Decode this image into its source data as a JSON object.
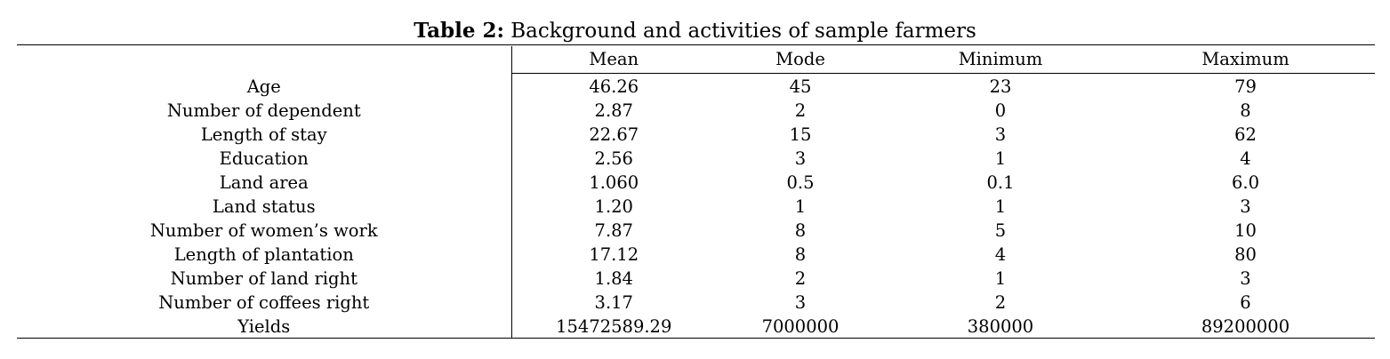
{
  "caption": {
    "label": "Table 2:",
    "text": "Background and activities of sample farmers"
  },
  "table": {
    "columns": [
      "",
      "Mean",
      "Mode",
      "Minimum",
      "Maximum"
    ],
    "rows": [
      {
        "label": "Age",
        "mean": "46.26",
        "mode": "45",
        "minimum": "23",
        "maximum": "79"
      },
      {
        "label": "Number of dependent",
        "mean": "2.87",
        "mode": "2",
        "minimum": "0",
        "maximum": "8"
      },
      {
        "label": "Length of stay",
        "mean": "22.67",
        "mode": "15",
        "minimum": "3",
        "maximum": "62"
      },
      {
        "label": "Education",
        "mean": "2.56",
        "mode": "3",
        "minimum": "1",
        "maximum": "4"
      },
      {
        "label": "Land area",
        "mean": "1.060",
        "mode": "0.5",
        "minimum": "0.1",
        "maximum": "6.0"
      },
      {
        "label": "Land status",
        "mean": "1.20",
        "mode": "1",
        "minimum": "1",
        "maximum": "3"
      },
      {
        "label": "Number of women’s work",
        "mean": "7.87",
        "mode": "8",
        "minimum": "5",
        "maximum": "10"
      },
      {
        "label": "Length of plantation",
        "mean": "17.12",
        "mode": "8",
        "minimum": "4",
        "maximum": "80"
      },
      {
        "label": "Number of land right",
        "mean": "1.84",
        "mode": "2",
        "minimum": "1",
        "maximum": "3"
      },
      {
        "label": "Number of coffees right",
        "mean": "3.17",
        "mode": "3",
        "minimum": "2",
        "maximum": "6"
      },
      {
        "label": "Yields",
        "mean": "15472589.29",
        "mode": "7000000",
        "minimum": "380000",
        "maximum": "89200000"
      }
    ]
  }
}
